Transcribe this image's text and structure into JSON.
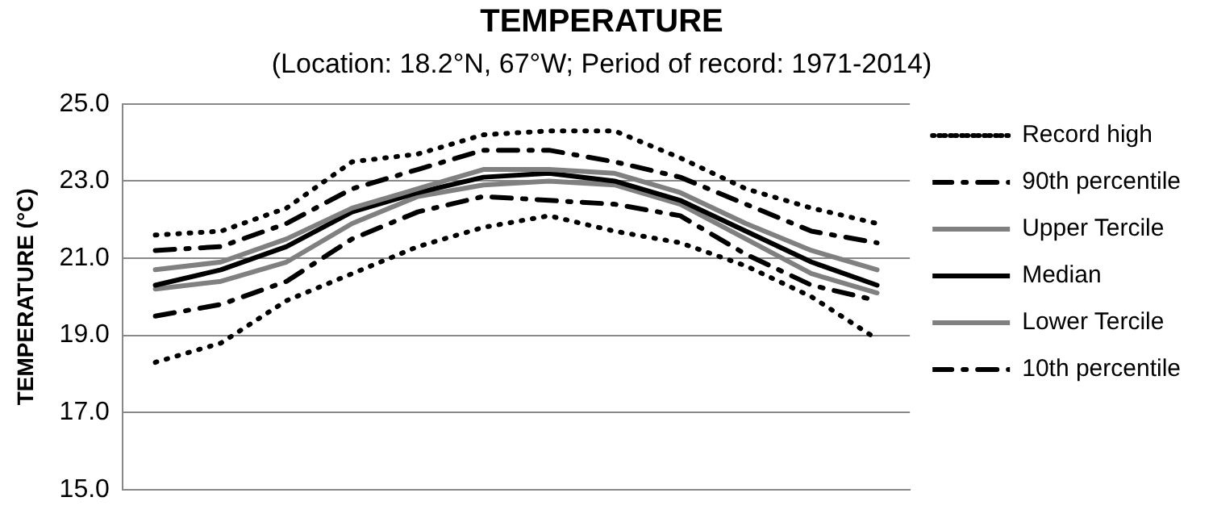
{
  "chart_data": {
    "type": "line",
    "title": "TEMPERATURE",
    "subtitle": "(Location: 18.2°N, 67°W; Period of record: 1971-2014)",
    "ylabel": "TEMPERATURE (°C)",
    "categories": [
      null,
      null,
      null,
      null,
      null,
      null,
      null,
      null,
      null,
      null,
      null,
      null
    ],
    "ylim": [
      15,
      25
    ],
    "yticks": [
      {
        "value": 15,
        "label": "15.0"
      },
      {
        "value": 17,
        "label": "17.0"
      },
      {
        "value": 19,
        "label": "19.0"
      },
      {
        "value": 21,
        "label": "21.0"
      },
      {
        "value": 23,
        "label": "23.0"
      },
      {
        "value": 25,
        "label": "25.0"
      }
    ],
    "grid": "y",
    "legend": "right",
    "tick_labels": "y",
    "marker": "none",
    "series": [
      {
        "name": "Record high",
        "color": "#000000",
        "line_style": "dotted",
        "values": [
          21.6,
          21.7,
          22.3,
          23.5,
          23.7,
          24.2,
          24.3,
          24.3,
          23.6,
          22.8,
          22.3,
          21.9
        ]
      },
      {
        "name": "90th percentile",
        "color": "#000000",
        "line_style": "dashed",
        "values": [
          21.2,
          21.3,
          21.9,
          22.8,
          23.3,
          23.8,
          23.8,
          23.5,
          23.1,
          22.4,
          21.7,
          21.4
        ]
      },
      {
        "name": "Upper Tercile",
        "color": "#808080",
        "line_style": "solid",
        "values": [
          20.7,
          20.9,
          21.5,
          22.3,
          22.8,
          23.3,
          23.3,
          23.2,
          22.7,
          21.9,
          21.2,
          20.7
        ]
      },
      {
        "name": "Median",
        "color": "#000000",
        "line_style": "solid",
        "values": [
          20.3,
          20.7,
          21.3,
          22.2,
          22.7,
          23.1,
          23.2,
          23.0,
          22.5,
          21.7,
          20.9,
          20.3
        ]
      },
      {
        "name": "Lower Tercile",
        "color": "#808080",
        "line_style": "solid",
        "values": [
          20.2,
          20.4,
          20.9,
          21.9,
          22.6,
          22.9,
          23.0,
          22.9,
          22.4,
          21.5,
          20.6,
          20.1
        ]
      },
      {
        "name": "10th percentile",
        "color": "#000000",
        "line_style": "dashed",
        "values": [
          19.5,
          19.8,
          20.4,
          21.5,
          22.2,
          22.6,
          22.5,
          22.4,
          22.1,
          21.1,
          20.3,
          19.9
        ]
      },
      {
        "color": "#000000",
        "line_style": "dotted",
        "values": [
          18.3,
          18.8,
          19.9,
          20.6,
          21.3,
          21.8,
          22.1,
          21.7,
          21.4,
          20.8,
          20.0,
          18.9
        ]
      }
    ]
  }
}
